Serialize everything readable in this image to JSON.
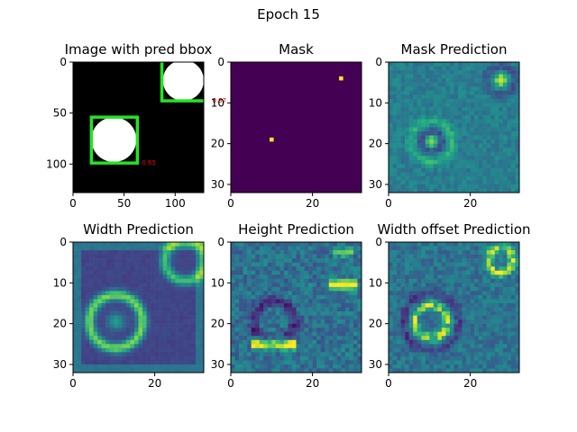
{
  "figure": {
    "title": "Epoch 15"
  },
  "chart_data": [
    {
      "type": "heatmap",
      "title": "Image with pred bbox",
      "colormap": "binary-image",
      "xlim": [
        0,
        128
      ],
      "ylim": [
        128,
        0
      ],
      "xticks": [
        "0",
        "50",
        "100"
      ],
      "yticks": [
        "0",
        "50",
        "100"
      ],
      "circles": [
        {
          "cx": 40,
          "cy": 76,
          "r": 22
        },
        {
          "cx": 108,
          "cy": 18,
          "r": 20
        }
      ],
      "bboxes": [
        {
          "x0": 18,
          "y0": 54,
          "x1": 63,
          "y1": 99,
          "score_label": "0.65"
        },
        {
          "x0": 87,
          "y0": -2,
          "x1": 132,
          "y1": 38,
          "score_label": "0.97"
        }
      ],
      "bbox_color": "#22e522",
      "score_color": "#ff0000"
    },
    {
      "type": "heatmap",
      "title": "Mask",
      "colormap": "viridis",
      "xlim": [
        0,
        32
      ],
      "ylim": [
        32,
        0
      ],
      "xticks": [
        "0",
        "20"
      ],
      "yticks": [
        "0",
        "10",
        "20",
        "30"
      ],
      "background_value": 0,
      "points": [
        {
          "x": 10,
          "y": 19,
          "value": 1
        },
        {
          "x": 27,
          "y": 4,
          "value": 1
        }
      ]
    },
    {
      "type": "heatmap",
      "title": "Mask Prediction",
      "colormap": "viridis",
      "xlim": [
        0,
        32
      ],
      "ylim": [
        32,
        0
      ],
      "xticks": [
        "0",
        "20"
      ],
      "yticks": [
        "0",
        "10",
        "20",
        "30"
      ],
      "pattern": "mask"
    },
    {
      "type": "heatmap",
      "title": "Width Prediction",
      "colormap": "viridis",
      "xlim": [
        0,
        32
      ],
      "ylim": [
        32,
        0
      ],
      "xticks": [
        "0",
        "20"
      ],
      "yticks": [
        "0",
        "10",
        "20",
        "30"
      ],
      "pattern": "width"
    },
    {
      "type": "heatmap",
      "title": "Height Prediction",
      "colormap": "viridis",
      "xlim": [
        0,
        32
      ],
      "ylim": [
        32,
        0
      ],
      "xticks": [
        "0",
        "20"
      ],
      "yticks": [
        "0",
        "10",
        "20",
        "30"
      ],
      "pattern": "height"
    },
    {
      "type": "heatmap",
      "title": "Width offset Prediction",
      "colormap": "viridis",
      "xlim": [
        0,
        32
      ],
      "ylim": [
        32,
        0
      ],
      "xticks": [
        "0",
        "20"
      ],
      "yticks": [
        "0",
        "10",
        "20",
        "30"
      ],
      "pattern": "offset"
    }
  ]
}
